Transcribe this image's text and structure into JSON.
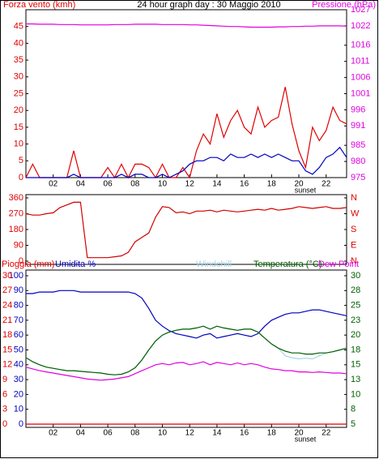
{
  "chart_data": [
    {
      "type": "line",
      "title": "24 hour graph day : 30 Maggio 2010",
      "ylabel": "Forza vento (kmh)",
      "y2label": "Pressione (hPa)",
      "ycolor": "#e00000",
      "y2color": "#e000e0",
      "xlim": [
        0,
        23.5
      ],
      "xticks": [
        {
          "value": 2,
          "label": "02"
        },
        {
          "value": 4,
          "label": "04"
        },
        {
          "value": 6,
          "label": "06"
        },
        {
          "value": 8,
          "label": "08"
        },
        10,
        12,
        14,
        16,
        18,
        20,
        22
      ],
      "annotation": "sunset",
      "ylim": [
        0,
        50
      ],
      "yticks": [
        0,
        5,
        10,
        15,
        20,
        25,
        30,
        35,
        40,
        45
      ],
      "y2lim": [
        975,
        1027
      ],
      "y2ticks": [
        975,
        980,
        985,
        991,
        996,
        1001,
        1006,
        1011,
        1016,
        1022,
        1027
      ],
      "x": [
        0,
        0.5,
        1,
        1.5,
        2,
        2.5,
        3,
        3.5,
        4,
        4.5,
        5,
        5.5,
        6,
        6.5,
        7,
        7.5,
        8,
        8.5,
        9,
        9.5,
        10,
        10.5,
        11,
        11.5,
        12,
        12.5,
        13,
        13.5,
        14,
        14.5,
        15,
        15.5,
        16,
        16.5,
        17,
        17.5,
        18,
        18.5,
        19,
        19.5,
        20,
        20.5,
        21,
        21.5,
        22,
        22.5,
        23,
        23.5
      ],
      "series": [
        {
          "color": "#e00000",
          "values": [
            0,
            4,
            0,
            0,
            0,
            0,
            0,
            8,
            0,
            0,
            0,
            0,
            3,
            0,
            4,
            0,
            4,
            4,
            3,
            0,
            4,
            0,
            0,
            3,
            0,
            8,
            13,
            10,
            19,
            12,
            17,
            20,
            15,
            13,
            21,
            15,
            17,
            18,
            27,
            16,
            8,
            3,
            15,
            11,
            14,
            21,
            17,
            16
          ]
        },
        {
          "color": "#0000c0",
          "values": [
            0,
            0,
            0,
            0,
            0,
            0,
            0,
            1,
            0,
            0,
            0,
            0,
            0,
            0,
            1,
            0,
            1,
            1,
            0,
            0,
            1,
            0,
            1,
            2,
            4,
            5,
            5,
            6,
            6,
            5,
            7,
            6,
            6,
            7,
            6,
            7,
            6,
            7,
            6,
            5,
            5,
            2,
            1,
            3,
            6,
            7,
            9,
            6
          ]
        },
        {
          "color": "#e000e0",
          "axis": "y2",
          "values": [
            1022.6,
            1022.6,
            1022.5,
            1022.5,
            1022.5,
            1022.4,
            1022.4,
            1022.4,
            1022.3,
            1022.3,
            1022.3,
            1022.3,
            1022.3,
            1022.4,
            1022.4,
            1022.4,
            1022.5,
            1022.5,
            1022.5,
            1022.5,
            1022.4,
            1022.4,
            1022.4,
            1022.4,
            1022.3,
            1022.3,
            1022.2,
            1022.1,
            1022.0,
            1021.9,
            1021.8,
            1021.8,
            1021.7,
            1021.6,
            1021.6,
            1021.6,
            1021.6,
            1021.7,
            1021.7,
            1021.8,
            1021.8,
            1021.9,
            1021.9,
            1022.0,
            1022.0,
            1022.0,
            1022.0,
            1021.9
          ]
        }
      ]
    },
    {
      "type": "line",
      "ycolor": "#e00000",
      "y2color": "#e00000",
      "xlim": [
        0,
        23.5
      ],
      "ylim": [
        0,
        360
      ],
      "yticks": [
        0,
        90,
        180,
        270,
        360
      ],
      "y2lim": [
        0,
        360
      ],
      "y2ticks": [
        {
          "value": 0,
          "label": "N"
        },
        {
          "value": 90,
          "label": "E"
        },
        {
          "value": 180,
          "label": "S"
        },
        {
          "value": 270,
          "label": "W"
        },
        {
          "value": 360,
          "label": "N"
        }
      ],
      "x": [
        0,
        0.5,
        1,
        1.5,
        2,
        2.5,
        3,
        3.5,
        4,
        4.5,
        5,
        5.5,
        6,
        6.5,
        7,
        7.5,
        8,
        8.5,
        9,
        9.5,
        10,
        10.5,
        11,
        11.5,
        12,
        12.5,
        13,
        13.5,
        14,
        14.5,
        15,
        15.5,
        16,
        16.5,
        17,
        17.5,
        18,
        18.5,
        19,
        19.5,
        20,
        20.5,
        21,
        21.5,
        22,
        22.5,
        23,
        23.5
      ],
      "series": [
        {
          "color": "#d00000",
          "values": [
            270,
            262,
            262,
            270,
            275,
            305,
            320,
            335,
            335,
            20,
            20,
            20,
            20,
            25,
            30,
            50,
            110,
            135,
            160,
            250,
            310,
            305,
            275,
            280,
            270,
            285,
            285,
            290,
            280,
            290,
            285,
            280,
            285,
            290,
            295,
            290,
            300,
            290,
            295,
            300,
            310,
            305,
            300,
            305,
            310,
            300,
            300,
            305
          ]
        }
      ]
    },
    {
      "type": "line",
      "ycolor": "#e00000",
      "y2color": "#006000",
      "y3color": "#0000c0",
      "xlim": [
        0,
        23.5
      ],
      "xticks": [
        {
          "value": 2,
          "label": "02"
        },
        {
          "value": 4,
          "label": "04"
        },
        {
          "value": 6,
          "label": "06"
        },
        {
          "value": 8,
          "label": "08"
        },
        10,
        12,
        14,
        16,
        18,
        20,
        22
      ],
      "annotation": "sunset",
      "ylim": [
        0,
        30
      ],
      "yticks": [
        0,
        3,
        6,
        9,
        12,
        15,
        18,
        21,
        24,
        27,
        30
      ],
      "y3lim": [
        0,
        100
      ],
      "y3ticks": [
        0,
        10,
        20,
        30,
        40,
        50,
        60,
        70,
        80,
        90,
        100
      ],
      "y2lim": [
        5,
        30
      ],
      "y2ticks": [
        5,
        {
          "value": 7.5,
          "label": "8"
        },
        10,
        {
          "value": 12.5,
          "label": "13"
        },
        15,
        {
          "value": 17.5,
          "label": "18"
        },
        20,
        {
          "value": 22.5,
          "label": "23"
        },
        25,
        {
          "value": 27.5,
          "label": "28"
        },
        30
      ],
      "x": [
        0,
        0.5,
        1,
        1.5,
        2,
        2.5,
        3,
        3.5,
        4,
        4.5,
        5,
        5.5,
        6,
        6.5,
        7,
        7.5,
        8,
        8.5,
        9,
        9.5,
        10,
        10.5,
        11,
        11.5,
        12,
        12.5,
        13,
        13.5,
        14,
        14.5,
        15,
        15.5,
        16,
        16.5,
        17,
        17.5,
        18,
        18.5,
        19,
        19.5,
        20,
        20.5,
        21,
        21.5,
        22,
        22.5,
        23,
        23.5
      ],
      "series": [
        {
          "name": "Pioggia (mm)",
          "color": "#e00000",
          "values": [
            0,
            0,
            0,
            0,
            0,
            0,
            0,
            0,
            0,
            0,
            0,
            0,
            0,
            0,
            0,
            0,
            0,
            0,
            0,
            0,
            0,
            0,
            0,
            0,
            0,
            0,
            0,
            0,
            0,
            0,
            0,
            0,
            0,
            0,
            0,
            0,
            0,
            0,
            0,
            0,
            0,
            0,
            0,
            0,
            0,
            0,
            0,
            0
          ]
        },
        {
          "name": "Umidita %",
          "color": "#0000c0",
          "axis": "y3",
          "values": [
            88,
            88,
            89,
            89,
            89,
            90,
            90,
            90,
            89,
            89,
            89,
            89,
            89,
            89,
            89,
            89,
            88,
            85,
            78,
            70,
            66,
            63,
            61,
            60,
            59,
            58,
            60,
            61,
            58,
            59,
            60,
            61,
            60,
            59,
            61,
            66,
            70,
            72,
            74,
            75,
            75,
            76,
            77,
            77,
            76,
            75,
            74,
            73
          ]
        },
        {
          "name": "Windchill",
          "color": "#a8d4e8",
          "axis": "y2",
          "values": [
            16.2,
            15.5,
            15.0,
            14.6,
            14.4,
            14.2,
            14.0,
            14.0,
            13.9,
            13.8,
            13.7,
            13.6,
            13.4,
            13.3,
            13.4,
            13.8,
            14.5,
            15.8,
            17.5,
            19.0,
            20.0,
            20.5,
            20.8,
            21.0,
            21.0,
            21.2,
            21.5,
            21.0,
            21.5,
            21.2,
            21.0,
            20.8,
            21.0,
            21.0,
            20.5,
            19.5,
            18.5,
            17.8,
            16.5,
            16.2,
            16.0,
            16.1,
            16.0,
            16.5,
            17.0,
            17.2,
            17.5,
            17.8
          ]
        },
        {
          "name": "Temperatura (°C)",
          "color": "#006000",
          "axis": "y2",
          "values": [
            16.2,
            15.5,
            15.0,
            14.6,
            14.4,
            14.2,
            14.0,
            14.0,
            13.9,
            13.8,
            13.7,
            13.6,
            13.4,
            13.3,
            13.4,
            13.8,
            14.5,
            15.8,
            17.5,
            19.0,
            20.0,
            20.5,
            20.8,
            21.0,
            21.0,
            21.2,
            21.5,
            21.0,
            21.5,
            21.2,
            21.0,
            20.8,
            21.0,
            21.0,
            20.5,
            19.5,
            18.5,
            17.8,
            17.3,
            17.0,
            17.0,
            16.8,
            16.8,
            17.0,
            17.0,
            17.2,
            17.5,
            17.8
          ]
        },
        {
          "name": "Dew Point",
          "color": "#e000e0",
          "axis": "y2",
          "values": [
            14.6,
            14.3,
            14.0,
            13.8,
            13.6,
            13.4,
            13.2,
            13.0,
            12.8,
            12.6,
            12.5,
            12.4,
            12.5,
            12.6,
            12.8,
            13.0,
            13.5,
            14.0,
            14.5,
            15.0,
            15.2,
            15.0,
            15.3,
            15.4,
            15.0,
            15.2,
            15.5,
            15.0,
            15.4,
            15.2,
            15.0,
            15.3,
            15.0,
            15.2,
            15.0,
            14.6,
            14.3,
            14.2,
            14.0,
            14.0,
            13.8,
            13.8,
            13.7,
            13.8,
            13.7,
            13.6,
            13.6,
            13.5
          ]
        }
      ]
    }
  ]
}
